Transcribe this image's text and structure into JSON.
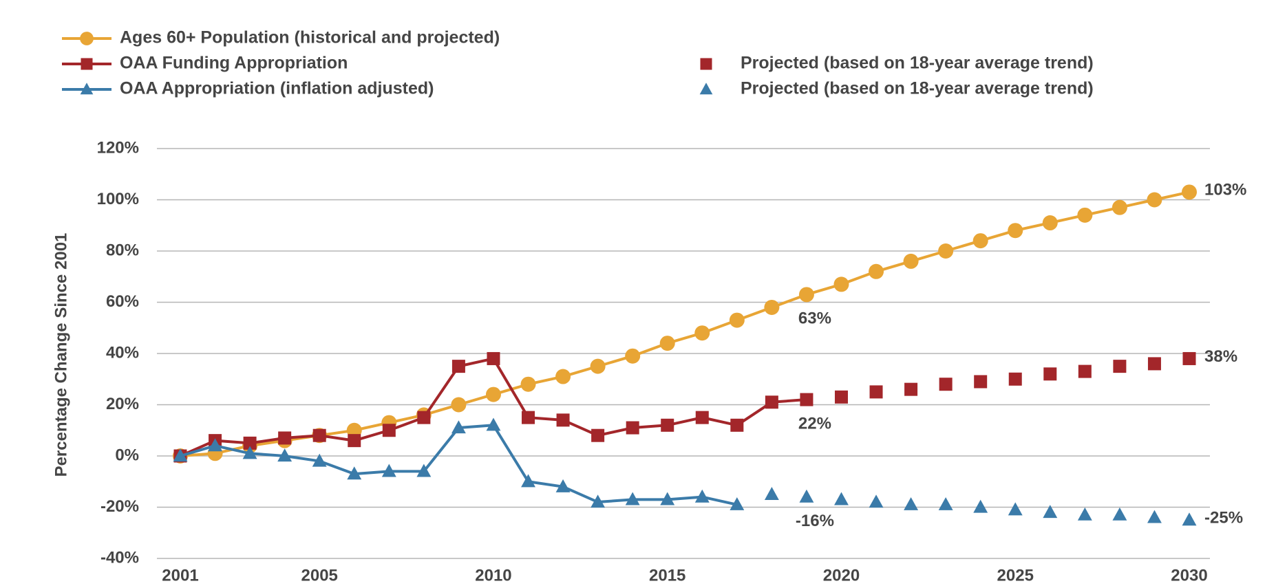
{
  "chart_data": {
    "type": "line",
    "y_label": "Percentage Change Since 2001",
    "x": [
      2001,
      2002,
      2003,
      2004,
      2005,
      2006,
      2007,
      2008,
      2009,
      2010,
      2011,
      2012,
      2013,
      2014,
      2015,
      2016,
      2017,
      2018,
      2019,
      2020,
      2021,
      2022,
      2023,
      2024,
      2025,
      2026,
      2027,
      2028,
      2029,
      2030
    ],
    "series": [
      {
        "name": "Ages 60+ Population (historical and projected)",
        "color": "#e8a535",
        "marker": "circle",
        "line": true,
        "values": [
          0,
          1,
          4,
          6,
          8,
          10,
          13,
          16,
          20,
          24,
          28,
          31,
          35,
          39,
          44,
          48,
          53,
          58,
          63,
          67,
          72,
          76,
          80,
          84,
          88,
          91,
          94,
          97,
          100,
          103
        ]
      },
      {
        "name": "OAA Funding Appropriation",
        "color": "#a3262a",
        "marker": "square",
        "line": true,
        "values": [
          0,
          6,
          5,
          7,
          8,
          6,
          10,
          15,
          35,
          38,
          15,
          14,
          8,
          11,
          12,
          15,
          12,
          21,
          22,
          null,
          null,
          null,
          null,
          null,
          null,
          null,
          null,
          null,
          null,
          null
        ]
      },
      {
        "name": "OAA Appropriation (inflation adjusted)",
        "color": "#3b7ba9",
        "marker": "triangle",
        "line": true,
        "values": [
          0,
          4,
          1,
          0,
          -2,
          -7,
          -6,
          -6,
          11,
          12,
          -10,
          -12,
          -18,
          -17,
          -17,
          -16,
          -19,
          null,
          null,
          null,
          null,
          null,
          null,
          null,
          null,
          null,
          null,
          null,
          null,
          null
        ]
      },
      {
        "name": "Projected (based on 18-year average trend)",
        "color": "#a3262a",
        "marker": "square",
        "line": false,
        "values": [
          null,
          null,
          null,
          null,
          null,
          null,
          null,
          null,
          null,
          null,
          null,
          null,
          null,
          null,
          null,
          null,
          null,
          null,
          null,
          23,
          25,
          26,
          28,
          29,
          30,
          32,
          33,
          35,
          36,
          38
        ]
      },
      {
        "name": "Projected (based on 18-year average trend)",
        "color": "#3b7ba9",
        "marker": "triangle",
        "line": false,
        "values": [
          null,
          null,
          null,
          null,
          null,
          null,
          null,
          null,
          null,
          null,
          null,
          null,
          null,
          null,
          null,
          null,
          null,
          -15,
          -16,
          -17,
          -18,
          -19,
          -19,
          -20,
          -21,
          -22,
          -23,
          -23,
          -24,
          -25
        ]
      }
    ],
    "xlim": [
      2001,
      2030
    ],
    "xticks": [
      2001,
      2005,
      2010,
      2015,
      2020,
      2025,
      2030
    ],
    "ylim": [
      -40,
      120
    ],
    "yticks": [
      {
        "value": -40,
        "label": "-40%"
      },
      {
        "value": -20,
        "label": "-20%"
      },
      {
        "value": 0,
        "label": "0%"
      },
      {
        "value": 20,
        "label": "20%"
      },
      {
        "value": 40,
        "label": "40%"
      },
      {
        "value": 60,
        "label": "60%"
      },
      {
        "value": 80,
        "label": "80%"
      },
      {
        "value": 100,
        "label": "100%"
      },
      {
        "value": 120,
        "label": "120%"
      }
    ],
    "grid": true,
    "annotations": [
      {
        "x": 2030,
        "y": 103,
        "label": "103%"
      },
      {
        "x": 2019,
        "y": 63,
        "label": "63%"
      },
      {
        "x": 2030,
        "y": 38,
        "label": "38%"
      },
      {
        "x": 2019,
        "y": 22,
        "label": "22%"
      },
      {
        "x": 2030,
        "y": -25,
        "label": "-25%"
      },
      {
        "x": 2019,
        "y": -16,
        "label": "-16%"
      }
    ]
  }
}
